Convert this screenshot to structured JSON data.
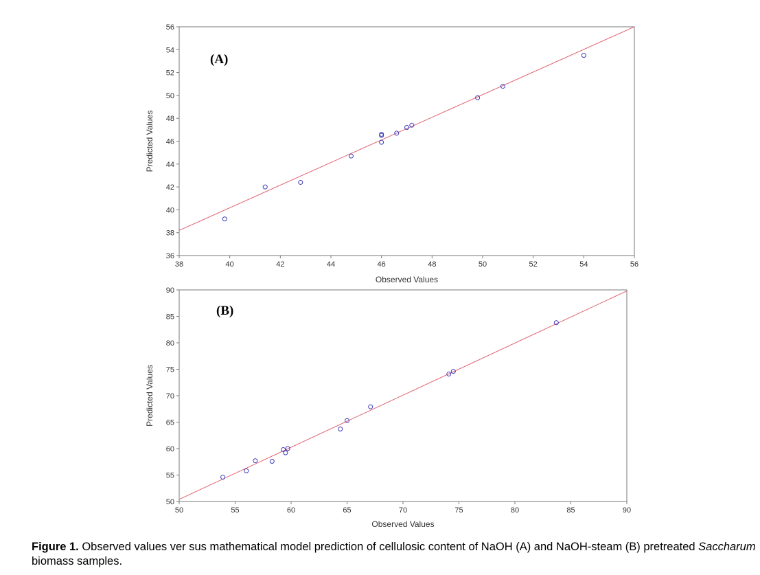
{
  "chart_data": [
    {
      "type": "scatter",
      "panel_label": "(A)",
      "xlabel": "Observed Values",
      "ylabel": "Predicted Values",
      "xlim": [
        38,
        56
      ],
      "ylim": [
        36,
        56
      ],
      "xticks": [
        38,
        40,
        42,
        44,
        46,
        48,
        50,
        52,
        54,
        56
      ],
      "yticks": [
        36,
        38,
        40,
        42,
        44,
        46,
        48,
        50,
        52,
        54,
        56
      ],
      "grid": false,
      "marker": "open-circle",
      "marker_color": "#3b3bbb",
      "fit_line": {
        "x": [
          38,
          56
        ],
        "y": [
          38.2,
          56.0
        ],
        "color": "#e06070"
      },
      "points": [
        {
          "x": 39.8,
          "y": 39.2
        },
        {
          "x": 41.4,
          "y": 42.0
        },
        {
          "x": 42.8,
          "y": 42.4
        },
        {
          "x": 44.8,
          "y": 44.7
        },
        {
          "x": 46.0,
          "y": 45.9
        },
        {
          "x": 46.0,
          "y": 46.5
        },
        {
          "x": 46.0,
          "y": 46.6
        },
        {
          "x": 46.6,
          "y": 46.7
        },
        {
          "x": 47.0,
          "y": 47.2
        },
        {
          "x": 47.2,
          "y": 47.4
        },
        {
          "x": 49.8,
          "y": 49.8
        },
        {
          "x": 50.8,
          "y": 50.8
        },
        {
          "x": 54.0,
          "y": 53.5
        }
      ]
    },
    {
      "type": "scatter",
      "panel_label": "(B)",
      "xlabel": "Observed Values",
      "ylabel": "Predicted Values",
      "xlim": [
        50,
        90
      ],
      "ylim": [
        50,
        90
      ],
      "xticks": [
        50,
        55,
        60,
        65,
        70,
        75,
        80,
        85,
        90
      ],
      "yticks": [
        50,
        55,
        60,
        65,
        70,
        75,
        80,
        85,
        90
      ],
      "grid": false,
      "marker": "open-circle",
      "marker_color": "#3b3bbb",
      "fit_line": {
        "x": [
          50,
          90
        ],
        "y": [
          50.4,
          89.8
        ],
        "color": "#e06070"
      },
      "points": [
        {
          "x": 53.9,
          "y": 54.6
        },
        {
          "x": 56.0,
          "y": 55.8
        },
        {
          "x": 56.8,
          "y": 57.7
        },
        {
          "x": 58.3,
          "y": 57.6
        },
        {
          "x": 59.3,
          "y": 59.8
        },
        {
          "x": 59.5,
          "y": 59.2
        },
        {
          "x": 59.7,
          "y": 60.0
        },
        {
          "x": 64.4,
          "y": 63.7
        },
        {
          "x": 65.0,
          "y": 65.3
        },
        {
          "x": 67.1,
          "y": 67.9
        },
        {
          "x": 74.1,
          "y": 74.1
        },
        {
          "x": 74.5,
          "y": 74.6
        },
        {
          "x": 83.7,
          "y": 83.8
        }
      ]
    }
  ],
  "caption": {
    "label": "Figure 1.",
    "text_1": " Observed values ver sus mathematical model prediction of cellulosic content of   NaOH (A) and NaOH-steam (B) pretreated ",
    "italic": "Saccharum",
    "text_2": " biomass samples."
  }
}
